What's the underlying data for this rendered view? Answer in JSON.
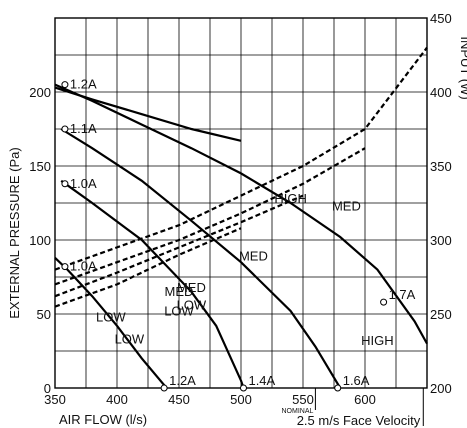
{
  "chart_data": {
    "type": "line",
    "xlabel": "AIR FLOW (l/s)",
    "ylabel": "EXTERNAL PRESSURE (Pa)",
    "y2label": "INPUT (W)",
    "xlim": [
      350,
      650
    ],
    "ylim": [
      0,
      250
    ],
    "y2lim": [
      200,
      450
    ],
    "x_ticks": [
      350,
      400,
      450,
      500,
      550,
      600
    ],
    "y_ticks": [
      0,
      50,
      100,
      150,
      200
    ],
    "y2_ticks": [
      200,
      250,
      300,
      350,
      400,
      450
    ],
    "grid": true,
    "nominal_label": "NOMINAL",
    "nominal_x": 560,
    "face_velocity_label": "2.5 m/s Face Velocity",
    "face_velocity_x": 647,
    "pressure_series": [
      {
        "name": "HIGH",
        "points": [
          [
            350,
            205
          ],
          [
            380,
            194
          ],
          [
            420,
            178
          ],
          [
            460,
            162
          ],
          [
            500,
            145
          ],
          [
            540,
            125
          ],
          [
            580,
            102
          ],
          [
            610,
            80
          ],
          [
            640,
            45
          ],
          [
            650,
            30
          ]
        ],
        "end_marker": [
          615,
          58
        ],
        "marker_label": "1.7A"
      },
      {
        "name": "HIGH",
        "points": [
          [
            350,
            203
          ],
          [
            380,
            195
          ],
          [
            420,
            185
          ],
          [
            460,
            175
          ],
          [
            500,
            167
          ]
        ],
        "start_marker": [
          358,
          205
        ],
        "marker_label": "1.2A"
      },
      {
        "name": "MED",
        "points": [
          [
            355,
            175
          ],
          [
            380,
            162
          ],
          [
            420,
            140
          ],
          [
            460,
            113
          ],
          [
            500,
            85
          ],
          [
            540,
            52
          ],
          [
            560,
            28
          ],
          [
            580,
            0
          ]
        ],
        "start_marker": [
          358,
          175
        ],
        "end_marker": [
          578,
          0
        ],
        "marker_label": "1.1A",
        "end_label": "1.6A"
      },
      {
        "name": "MED LOW",
        "points": [
          [
            355,
            140
          ],
          [
            380,
            125
          ],
          [
            420,
            100
          ],
          [
            460,
            65
          ],
          [
            480,
            42
          ],
          [
            500,
            5
          ],
          [
            502,
            0
          ]
        ],
        "start_marker": [
          358,
          138
        ],
        "end_marker": [
          502,
          0
        ],
        "marker_label": "1.0A",
        "end_label": "1.4A"
      },
      {
        "name": "LOW",
        "points": [
          [
            350,
            88
          ],
          [
            360,
            80
          ],
          [
            380,
            62
          ],
          [
            400,
            42
          ],
          [
            420,
            20
          ],
          [
            440,
            0
          ]
        ],
        "start_marker": [
          358,
          82
        ],
        "end_marker": [
          438,
          0
        ],
        "marker_label": "1.0A",
        "end_label": "1.2A"
      }
    ],
    "input_series": [
      {
        "name": "HIGH",
        "points": [
          [
            350,
            280
          ],
          [
            400,
            295
          ],
          [
            450,
            310
          ],
          [
            500,
            330
          ],
          [
            550,
            350
          ],
          [
            600,
            375
          ],
          [
            650,
            430
          ]
        ]
      },
      {
        "name": "MED",
        "points": [
          [
            350,
            270
          ],
          [
            400,
            285
          ],
          [
            450,
            300
          ],
          [
            500,
            318
          ],
          [
            550,
            338
          ],
          [
            600,
            362
          ]
        ]
      },
      {
        "name": "MED LOW",
        "points": [
          [
            350,
            262
          ],
          [
            400,
            278
          ],
          [
            450,
            295
          ],
          [
            500,
            312
          ],
          [
            550,
            330
          ]
        ]
      },
      {
        "name": "LOW",
        "points": [
          [
            350,
            255
          ],
          [
            400,
            270
          ],
          [
            450,
            290
          ],
          [
            500,
            308
          ]
        ]
      }
    ],
    "annotations": [
      {
        "text": "HIGH",
        "x": 610,
        "y": 229,
        "axis": "y2"
      },
      {
        "text": "MED",
        "x": 585,
        "y": 320,
        "axis": "y2"
      },
      {
        "text": "MED",
        "x": 450,
        "y": 262,
        "axis": "y2"
      },
      {
        "text": "LOW",
        "x": 450,
        "y": 249,
        "axis": "y2"
      },
      {
        "text": "LOW",
        "x": 395,
        "y": 245,
        "axis": "y2"
      },
      {
        "text": "HIGH",
        "x": 540,
        "y": 125,
        "axis": "y"
      },
      {
        "text": "MED",
        "x": 510,
        "y": 86,
        "axis": "y"
      },
      {
        "text": "MED",
        "x": 460,
        "y": 65,
        "axis": "y"
      },
      {
        "text": "LOW",
        "x": 460,
        "y": 53,
        "axis": "y"
      },
      {
        "text": "LOW",
        "x": 410,
        "y": 30,
        "axis": "y"
      }
    ]
  }
}
